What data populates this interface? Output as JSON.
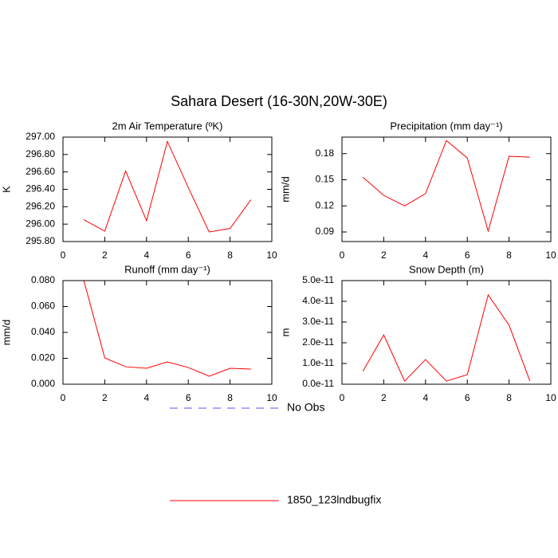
{
  "title": "Sahara Desert (16-30N,20W-30E)",
  "legend": [
    {
      "label": "No Obs",
      "color": "#5555ff",
      "dashed": true
    },
    {
      "label": "1850_123lndbugfix",
      "color": "#ff0000",
      "dashed": false
    }
  ],
  "chart_data": [
    {
      "type": "line",
      "title": "2m Air Temperature (ºK)",
      "y_label": "K",
      "x": [
        1,
        2,
        3,
        4,
        5,
        6,
        7,
        8,
        9
      ],
      "series": [
        {
          "color": "#ff0000",
          "values": [
            296.05,
            295.92,
            296.61,
            296.04,
            296.95,
            296.42,
            295.91,
            295.95,
            296.28
          ]
        }
      ],
      "xlim": [
        0,
        10
      ],
      "xticks": [
        0,
        2,
        4,
        6,
        8,
        10
      ],
      "ylim": [
        295.8,
        297.0
      ],
      "yticks": [
        {
          "value": 295.8,
          "label": "295.80"
        },
        {
          "value": 296.0,
          "label": "296.00"
        },
        {
          "value": 296.2,
          "label": "296.20"
        },
        {
          "value": 296.4,
          "label": "296.40"
        },
        {
          "value": 296.6,
          "label": "296.60"
        },
        {
          "value": 296.8,
          "label": "296.80"
        },
        {
          "value": 297.0,
          "label": "297.00"
        }
      ]
    },
    {
      "type": "line",
      "title": "Precipitation (mm day⁻¹)",
      "y_label": "mm/d",
      "x": [
        1,
        2,
        3,
        4,
        5,
        6,
        7,
        8,
        9
      ],
      "series": [
        {
          "color": "#ff0000",
          "values": [
            0.153,
            0.132,
            0.12,
            0.134,
            0.195,
            0.175,
            0.091,
            0.177,
            0.176
          ]
        }
      ],
      "xlim": [
        0,
        10
      ],
      "xticks": [
        0,
        2,
        4,
        6,
        8,
        10
      ],
      "ylim": [
        0.079,
        0.199
      ],
      "yticks": [
        0.09,
        0.12,
        0.15,
        0.18
      ]
    },
    {
      "type": "line",
      "title": "Runoff (mm day⁻¹)",
      "y_label": "mm/d",
      "x": [
        1,
        2,
        3,
        4,
        5,
        6,
        7,
        8,
        9
      ],
      "series": [
        {
          "color": "#ff0000",
          "values": [
            0.08,
            0.0203,
            0.0135,
            0.0123,
            0.0172,
            0.0129,
            0.0062,
            0.0123,
            0.0117
          ]
        }
      ],
      "xlim": [
        0,
        10
      ],
      "xticks": [
        0,
        2,
        4,
        6,
        8,
        10
      ],
      "ylim": [
        0,
        0.08
      ],
      "yticks": [
        {
          "value": 0,
          "label": "0.000"
        },
        {
          "value": 0.02,
          "label": "0.020"
        },
        {
          "value": 0.04,
          "label": "0.040"
        },
        {
          "value": 0.06,
          "label": "0.060"
        },
        {
          "value": 0.08,
          "label": "0.080"
        }
      ]
    },
    {
      "type": "line",
      "title": "Snow Depth (m)",
      "y_label": "m",
      "x": [
        1,
        2,
        3,
        4,
        5,
        6,
        7,
        8,
        9
      ],
      "series": [
        {
          "color": "#ff0000",
          "values": [
            6.2e-12,
            2.38e-11,
            1.5e-12,
            1.19e-11,
            1.5e-12,
            4.6e-12,
            4.31e-11,
            2.85e-11,
            1.5e-12
          ]
        }
      ],
      "xlim": [
        0,
        10
      ],
      "xticks": [
        0,
        2,
        4,
        6,
        8,
        10
      ],
      "ylim": [
        0,
        5e-11
      ],
      "yticks": [
        {
          "value": 0,
          "label": "0.0e-11"
        },
        {
          "value": 1e-11,
          "label": "1.0e-11"
        },
        {
          "value": 2e-11,
          "label": "2.0e-11"
        },
        {
          "value": 3e-11,
          "label": "3.0e-11"
        },
        {
          "value": 4e-11,
          "label": "4.0e-11"
        },
        {
          "value": 5e-11,
          "label": "5.0e-11"
        }
      ]
    }
  ]
}
